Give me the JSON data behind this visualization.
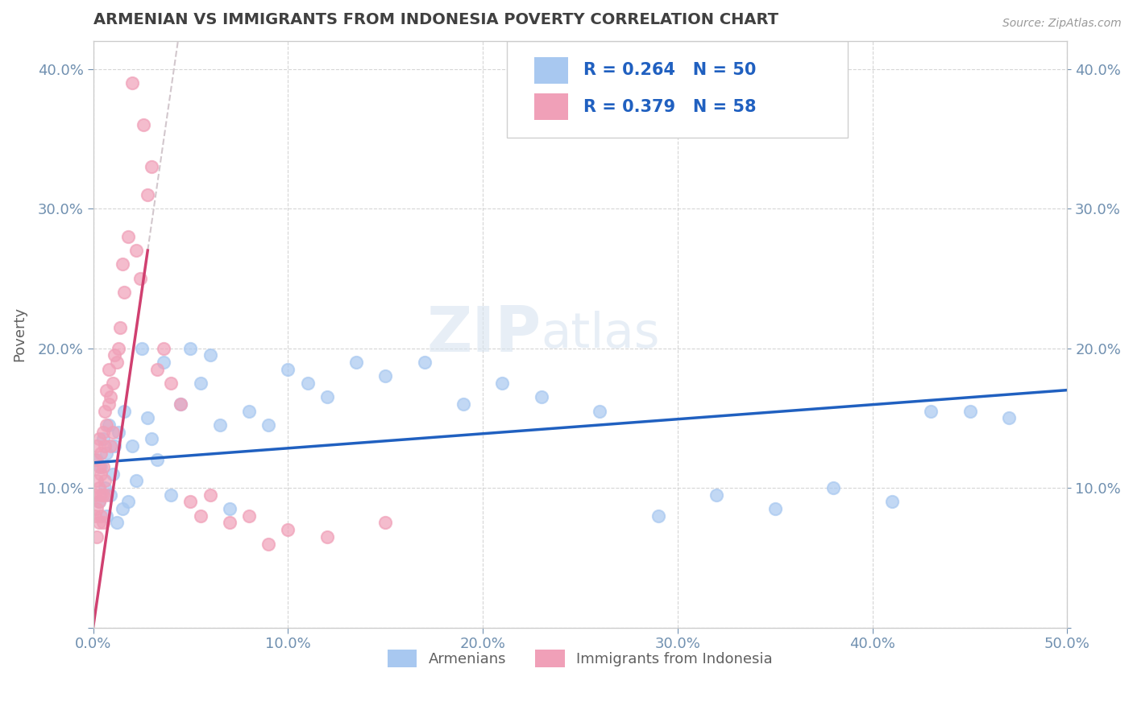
{
  "title": "ARMENIAN VS IMMIGRANTS FROM INDONESIA POVERTY CORRELATION CHART",
  "source_text": "Source: ZipAtlas.com",
  "ylabel": "Poverty",
  "xlim": [
    0.0,
    0.5
  ],
  "ylim": [
    0.0,
    0.42
  ],
  "xticks": [
    0.0,
    0.1,
    0.2,
    0.3,
    0.4,
    0.5
  ],
  "yticks": [
    0.0,
    0.1,
    0.2,
    0.3,
    0.4
  ],
  "xticklabels": [
    "0.0%",
    "10.0%",
    "20.0%",
    "30.0%",
    "40.0%",
    "50.0%"
  ],
  "yticklabels": [
    "",
    "10.0%",
    "20.0%",
    "30.0%",
    "40.0%"
  ],
  "legend_label1": "Armenians",
  "legend_label2": "Immigrants from Indonesia",
  "R1": 0.264,
  "N1": 50,
  "R2": 0.379,
  "N2": 58,
  "color1": "#a8c8f0",
  "color2": "#f0a0b8",
  "line_color1": "#2060c0",
  "line_color2": "#d04070",
  "watermark_zip": "ZIP",
  "watermark_atlas": "atlas",
  "title_color": "#404040",
  "axis_label_color": "#606060",
  "tick_color": "#7090b0",
  "background_color": "#ffffff",
  "armenians_x": [
    0.002,
    0.003,
    0.004,
    0.005,
    0.006,
    0.007,
    0.007,
    0.008,
    0.009,
    0.01,
    0.011,
    0.012,
    0.013,
    0.015,
    0.016,
    0.018,
    0.02,
    0.022,
    0.025,
    0.028,
    0.03,
    0.033,
    0.036,
    0.04,
    0.045,
    0.05,
    0.055,
    0.06,
    0.065,
    0.07,
    0.08,
    0.09,
    0.1,
    0.11,
    0.12,
    0.135,
    0.15,
    0.17,
    0.19,
    0.21,
    0.23,
    0.26,
    0.29,
    0.32,
    0.35,
    0.38,
    0.41,
    0.43,
    0.45,
    0.47
  ],
  "armenians_y": [
    0.12,
    0.09,
    0.115,
    0.135,
    0.1,
    0.125,
    0.08,
    0.145,
    0.095,
    0.11,
    0.13,
    0.075,
    0.14,
    0.085,
    0.155,
    0.09,
    0.13,
    0.105,
    0.2,
    0.15,
    0.135,
    0.12,
    0.19,
    0.095,
    0.16,
    0.2,
    0.175,
    0.195,
    0.145,
    0.085,
    0.155,
    0.145,
    0.185,
    0.175,
    0.165,
    0.19,
    0.18,
    0.19,
    0.16,
    0.175,
    0.165,
    0.155,
    0.08,
    0.095,
    0.085,
    0.1,
    0.09,
    0.155,
    0.155,
    0.15
  ],
  "indonesia_x": [
    0.001,
    0.001,
    0.001,
    0.002,
    0.002,
    0.002,
    0.002,
    0.003,
    0.003,
    0.003,
    0.003,
    0.003,
    0.004,
    0.004,
    0.004,
    0.004,
    0.005,
    0.005,
    0.005,
    0.005,
    0.006,
    0.006,
    0.006,
    0.007,
    0.007,
    0.007,
    0.008,
    0.008,
    0.009,
    0.009,
    0.01,
    0.01,
    0.011,
    0.012,
    0.013,
    0.014,
    0.015,
    0.016,
    0.018,
    0.02,
    0.022,
    0.024,
    0.026,
    0.028,
    0.03,
    0.033,
    0.036,
    0.04,
    0.045,
    0.05,
    0.055,
    0.06,
    0.07,
    0.08,
    0.09,
    0.1,
    0.12,
    0.15
  ],
  "indonesia_y": [
    0.12,
    0.095,
    0.08,
    0.13,
    0.105,
    0.085,
    0.065,
    0.115,
    0.1,
    0.09,
    0.075,
    0.135,
    0.11,
    0.095,
    0.08,
    0.125,
    0.14,
    0.115,
    0.095,
    0.075,
    0.155,
    0.13,
    0.105,
    0.17,
    0.145,
    0.095,
    0.185,
    0.16,
    0.165,
    0.13,
    0.175,
    0.14,
    0.195,
    0.19,
    0.2,
    0.215,
    0.26,
    0.24,
    0.28,
    0.39,
    0.27,
    0.25,
    0.36,
    0.31,
    0.33,
    0.185,
    0.2,
    0.175,
    0.16,
    0.09,
    0.08,
    0.095,
    0.075,
    0.08,
    0.06,
    0.07,
    0.065,
    0.075
  ],
  "trend1_x0": 0.0,
  "trend1_y0": 0.118,
  "trend1_x1": 0.5,
  "trend1_y1": 0.17,
  "trend2_x0": 0.0,
  "trend2_y0": 0.0,
  "trend2_x1": 0.028,
  "trend2_y1": 0.27
}
